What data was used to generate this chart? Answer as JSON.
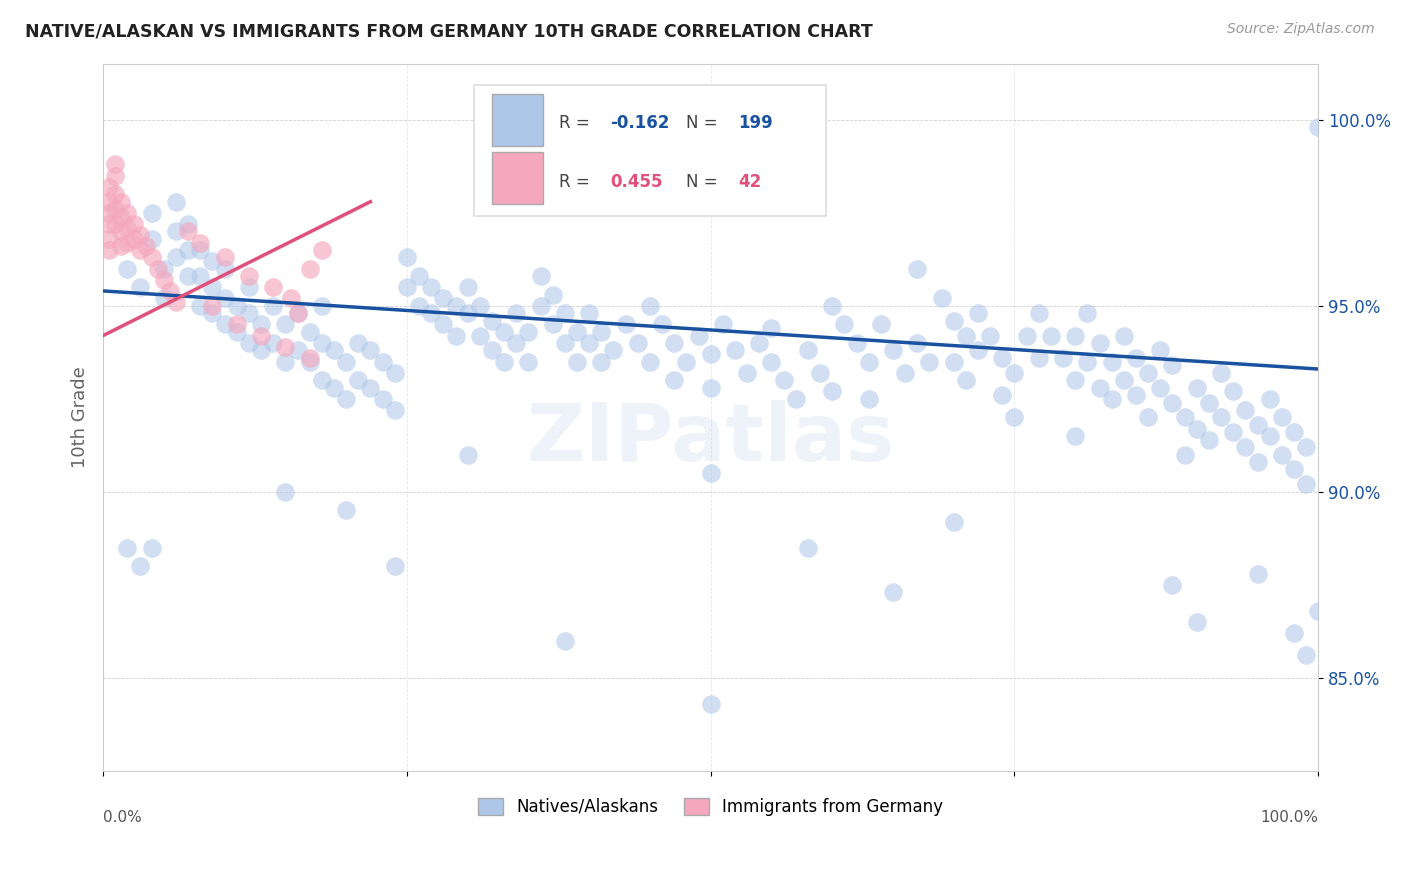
{
  "title": "NATIVE/ALASKAN VS IMMIGRANTS FROM GERMANY 10TH GRADE CORRELATION CHART",
  "source": "Source: ZipAtlas.com",
  "ylabel": "10th Grade",
  "ytick_labels": [
    "85.0%",
    "90.0%",
    "95.0%",
    "100.0%"
  ],
  "ytick_values": [
    0.85,
    0.9,
    0.95,
    1.0
  ],
  "xlim": [
    0.0,
    1.0
  ],
  "ylim": [
    0.825,
    1.015
  ],
  "legend_blue_label": "Natives/Alaskans",
  "legend_pink_label": "Immigrants from Germany",
  "R_blue": -0.162,
  "N_blue": 199,
  "R_pink": 0.455,
  "N_pink": 42,
  "blue_color": "#aec6e8",
  "pink_color": "#f4a7be",
  "blue_line_color": "#1a52a0",
  "pink_line_color": "#e0507a",
  "watermark": "ZIPatlas",
  "blue_trend_x": [
    0.0,
    1.0
  ],
  "blue_trend_y": [
    0.954,
    0.933
  ],
  "pink_trend_x": [
    0.0,
    0.22
  ],
  "pink_trend_y": [
    0.942,
    0.978
  ],
  "blue_points": [
    [
      0.02,
      0.96
    ],
    [
      0.03,
      0.955
    ],
    [
      0.04,
      0.968
    ],
    [
      0.04,
      0.975
    ],
    [
      0.05,
      0.952
    ],
    [
      0.05,
      0.96
    ],
    [
      0.06,
      0.97
    ],
    [
      0.06,
      0.978
    ],
    [
      0.06,
      0.963
    ],
    [
      0.07,
      0.958
    ],
    [
      0.07,
      0.965
    ],
    [
      0.07,
      0.972
    ],
    [
      0.08,
      0.95
    ],
    [
      0.08,
      0.958
    ],
    [
      0.08,
      0.965
    ],
    [
      0.09,
      0.948
    ],
    [
      0.09,
      0.955
    ],
    [
      0.09,
      0.962
    ],
    [
      0.1,
      0.945
    ],
    [
      0.1,
      0.952
    ],
    [
      0.1,
      0.96
    ],
    [
      0.11,
      0.943
    ],
    [
      0.11,
      0.95
    ],
    [
      0.12,
      0.94
    ],
    [
      0.12,
      0.948
    ],
    [
      0.12,
      0.955
    ],
    [
      0.13,
      0.938
    ],
    [
      0.13,
      0.945
    ],
    [
      0.14,
      0.94
    ],
    [
      0.14,
      0.95
    ],
    [
      0.15,
      0.935
    ],
    [
      0.15,
      0.945
    ],
    [
      0.16,
      0.938
    ],
    [
      0.16,
      0.948
    ],
    [
      0.17,
      0.935
    ],
    [
      0.17,
      0.943
    ],
    [
      0.18,
      0.93
    ],
    [
      0.18,
      0.94
    ],
    [
      0.18,
      0.95
    ],
    [
      0.19,
      0.928
    ],
    [
      0.19,
      0.938
    ],
    [
      0.2,
      0.925
    ],
    [
      0.2,
      0.935
    ],
    [
      0.21,
      0.93
    ],
    [
      0.21,
      0.94
    ],
    [
      0.22,
      0.928
    ],
    [
      0.22,
      0.938
    ],
    [
      0.23,
      0.925
    ],
    [
      0.23,
      0.935
    ],
    [
      0.24,
      0.922
    ],
    [
      0.24,
      0.932
    ],
    [
      0.25,
      0.955
    ],
    [
      0.25,
      0.963
    ],
    [
      0.26,
      0.95
    ],
    [
      0.26,
      0.958
    ],
    [
      0.27,
      0.948
    ],
    [
      0.27,
      0.955
    ],
    [
      0.28,
      0.945
    ],
    [
      0.28,
      0.952
    ],
    [
      0.29,
      0.942
    ],
    [
      0.29,
      0.95
    ],
    [
      0.3,
      0.948
    ],
    [
      0.3,
      0.955
    ],
    [
      0.31,
      0.942
    ],
    [
      0.31,
      0.95
    ],
    [
      0.32,
      0.938
    ],
    [
      0.32,
      0.946
    ],
    [
      0.33,
      0.935
    ],
    [
      0.33,
      0.943
    ],
    [
      0.34,
      0.94
    ],
    [
      0.34,
      0.948
    ],
    [
      0.35,
      0.935
    ],
    [
      0.35,
      0.943
    ],
    [
      0.36,
      0.95
    ],
    [
      0.36,
      0.958
    ],
    [
      0.37,
      0.945
    ],
    [
      0.37,
      0.953
    ],
    [
      0.38,
      0.94
    ],
    [
      0.38,
      0.948
    ],
    [
      0.39,
      0.935
    ],
    [
      0.39,
      0.943
    ],
    [
      0.4,
      0.94
    ],
    [
      0.4,
      0.948
    ],
    [
      0.41,
      0.935
    ],
    [
      0.41,
      0.943
    ],
    [
      0.42,
      0.938
    ],
    [
      0.43,
      0.945
    ],
    [
      0.44,
      0.94
    ],
    [
      0.45,
      0.935
    ],
    [
      0.45,
      0.95
    ],
    [
      0.46,
      0.945
    ],
    [
      0.47,
      0.94
    ],
    [
      0.47,
      0.93
    ],
    [
      0.48,
      0.935
    ],
    [
      0.49,
      0.942
    ],
    [
      0.5,
      0.937
    ],
    [
      0.5,
      0.928
    ],
    [
      0.51,
      0.945
    ],
    [
      0.52,
      0.938
    ],
    [
      0.53,
      0.932
    ],
    [
      0.54,
      0.94
    ],
    [
      0.55,
      0.935
    ],
    [
      0.55,
      0.944
    ],
    [
      0.56,
      0.93
    ],
    [
      0.57,
      0.925
    ],
    [
      0.58,
      0.938
    ],
    [
      0.59,
      0.932
    ],
    [
      0.6,
      0.927
    ],
    [
      0.6,
      0.95
    ],
    [
      0.61,
      0.945
    ],
    [
      0.62,
      0.94
    ],
    [
      0.63,
      0.935
    ],
    [
      0.63,
      0.925
    ],
    [
      0.64,
      0.945
    ],
    [
      0.65,
      0.938
    ],
    [
      0.66,
      0.932
    ],
    [
      0.67,
      0.94
    ],
    [
      0.67,
      0.96
    ],
    [
      0.68,
      0.935
    ],
    [
      0.69,
      0.952
    ],
    [
      0.7,
      0.946
    ],
    [
      0.7,
      0.935
    ],
    [
      0.71,
      0.942
    ],
    [
      0.71,
      0.93
    ],
    [
      0.72,
      0.938
    ],
    [
      0.72,
      0.948
    ],
    [
      0.73,
      0.942
    ],
    [
      0.74,
      0.936
    ],
    [
      0.74,
      0.926
    ],
    [
      0.75,
      0.932
    ],
    [
      0.75,
      0.92
    ],
    [
      0.76,
      0.942
    ],
    [
      0.77,
      0.936
    ],
    [
      0.77,
      0.948
    ],
    [
      0.78,
      0.942
    ],
    [
      0.79,
      0.936
    ],
    [
      0.8,
      0.93
    ],
    [
      0.8,
      0.942
    ],
    [
      0.81,
      0.935
    ],
    [
      0.81,
      0.948
    ],
    [
      0.82,
      0.94
    ],
    [
      0.82,
      0.928
    ],
    [
      0.83,
      0.935
    ],
    [
      0.83,
      0.925
    ],
    [
      0.84,
      0.93
    ],
    [
      0.84,
      0.942
    ],
    [
      0.85,
      0.936
    ],
    [
      0.85,
      0.926
    ],
    [
      0.86,
      0.932
    ],
    [
      0.86,
      0.92
    ],
    [
      0.87,
      0.928
    ],
    [
      0.87,
      0.938
    ],
    [
      0.88,
      0.924
    ],
    [
      0.88,
      0.934
    ],
    [
      0.89,
      0.92
    ],
    [
      0.89,
      0.91
    ],
    [
      0.9,
      0.928
    ],
    [
      0.9,
      0.917
    ],
    [
      0.91,
      0.924
    ],
    [
      0.91,
      0.914
    ],
    [
      0.92,
      0.92
    ],
    [
      0.92,
      0.932
    ],
    [
      0.93,
      0.927
    ],
    [
      0.93,
      0.916
    ],
    [
      0.94,
      0.922
    ],
    [
      0.94,
      0.912
    ],
    [
      0.95,
      0.918
    ],
    [
      0.95,
      0.908
    ],
    [
      0.96,
      0.925
    ],
    [
      0.96,
      0.915
    ],
    [
      0.97,
      0.92
    ],
    [
      0.97,
      0.91
    ],
    [
      0.98,
      0.916
    ],
    [
      0.98,
      0.906
    ],
    [
      0.99,
      0.912
    ],
    [
      0.99,
      0.902
    ],
    [
      1.0,
      0.998
    ],
    [
      0.02,
      0.885
    ],
    [
      0.03,
      0.88
    ],
    [
      0.04,
      0.885
    ],
    [
      0.15,
      0.9
    ],
    [
      0.2,
      0.895
    ],
    [
      0.24,
      0.88
    ],
    [
      0.3,
      0.91
    ],
    [
      0.38,
      0.86
    ],
    [
      0.5,
      0.843
    ],
    [
      0.5,
      0.905
    ],
    [
      0.58,
      0.885
    ],
    [
      0.65,
      0.873
    ],
    [
      0.7,
      0.892
    ],
    [
      0.8,
      0.915
    ],
    [
      0.88,
      0.875
    ],
    [
      0.9,
      0.865
    ],
    [
      0.95,
      0.878
    ],
    [
      0.98,
      0.862
    ],
    [
      0.99,
      0.856
    ],
    [
      1.0,
      0.868
    ]
  ],
  "pink_points": [
    [
      0.005,
      0.982
    ],
    [
      0.005,
      0.978
    ],
    [
      0.005,
      0.975
    ],
    [
      0.005,
      0.972
    ],
    [
      0.005,
      0.968
    ],
    [
      0.005,
      0.965
    ],
    [
      0.01,
      0.988
    ],
    [
      0.01,
      0.985
    ],
    [
      0.01,
      0.98
    ],
    [
      0.01,
      0.976
    ],
    [
      0.01,
      0.972
    ],
    [
      0.015,
      0.978
    ],
    [
      0.015,
      0.974
    ],
    [
      0.015,
      0.97
    ],
    [
      0.015,
      0.966
    ],
    [
      0.02,
      0.975
    ],
    [
      0.02,
      0.971
    ],
    [
      0.02,
      0.967
    ],
    [
      0.025,
      0.972
    ],
    [
      0.025,
      0.968
    ],
    [
      0.03,
      0.969
    ],
    [
      0.03,
      0.965
    ],
    [
      0.035,
      0.966
    ],
    [
      0.04,
      0.963
    ],
    [
      0.045,
      0.96
    ],
    [
      0.05,
      0.957
    ],
    [
      0.055,
      0.954
    ],
    [
      0.06,
      0.951
    ],
    [
      0.07,
      0.97
    ],
    [
      0.08,
      0.967
    ],
    [
      0.09,
      0.95
    ],
    [
      0.1,
      0.963
    ],
    [
      0.11,
      0.945
    ],
    [
      0.12,
      0.958
    ],
    [
      0.13,
      0.942
    ],
    [
      0.14,
      0.955
    ],
    [
      0.15,
      0.939
    ],
    [
      0.155,
      0.952
    ],
    [
      0.16,
      0.948
    ],
    [
      0.17,
      0.96
    ],
    [
      0.17,
      0.936
    ],
    [
      0.18,
      0.965
    ]
  ]
}
